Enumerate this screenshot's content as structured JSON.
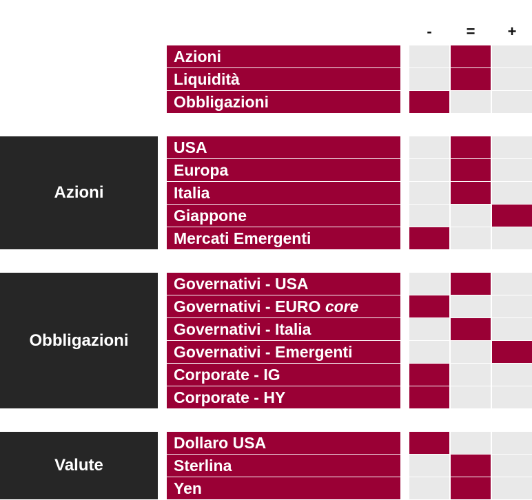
{
  "columns": [
    "-",
    "=",
    "+"
  ],
  "colors": {
    "active": "#9a0035",
    "inactive": "#e9e9e9",
    "group_bg": "#262626"
  },
  "groups": [
    {
      "label": "",
      "rows": [
        {
          "label": "Azioni",
          "suffix": "",
          "selected": 1
        },
        {
          "label": "Liquidità",
          "suffix": "",
          "selected": 1
        },
        {
          "label": "Obbligazioni",
          "suffix": "",
          "selected": 0
        }
      ]
    },
    {
      "label": "Azioni",
      "rows": [
        {
          "label": "USA",
          "suffix": "",
          "selected": 1
        },
        {
          "label": "Europa",
          "suffix": "",
          "selected": 1
        },
        {
          "label": "Italia",
          "suffix": "",
          "selected": 1
        },
        {
          "label": "Giappone",
          "suffix": "",
          "selected": 2
        },
        {
          "label": "Mercati Emergenti",
          "suffix": "",
          "selected": 0
        }
      ]
    },
    {
      "label": "Obbligazioni",
      "rows": [
        {
          "label": "Governativi - USA",
          "suffix": "",
          "selected": 1
        },
        {
          "label": "Governativi - EURO",
          "suffix": "core",
          "selected": 0
        },
        {
          "label": "Governativi - Italia",
          "suffix": "",
          "selected": 1
        },
        {
          "label": "Governativi - Emergenti",
          "suffix": "",
          "selected": 2
        },
        {
          "label": "Corporate - IG",
          "suffix": "",
          "selected": 0
        },
        {
          "label": "Corporate - HY",
          "suffix": "",
          "selected": 0
        }
      ]
    },
    {
      "label": "Valute",
      "rows": [
        {
          "label": "Dollaro USA",
          "suffix": "",
          "selected": 0
        },
        {
          "label": "Sterlina",
          "suffix": "",
          "selected": 1
        },
        {
          "label": "Yen",
          "suffix": "",
          "selected": 1
        }
      ]
    }
  ]
}
